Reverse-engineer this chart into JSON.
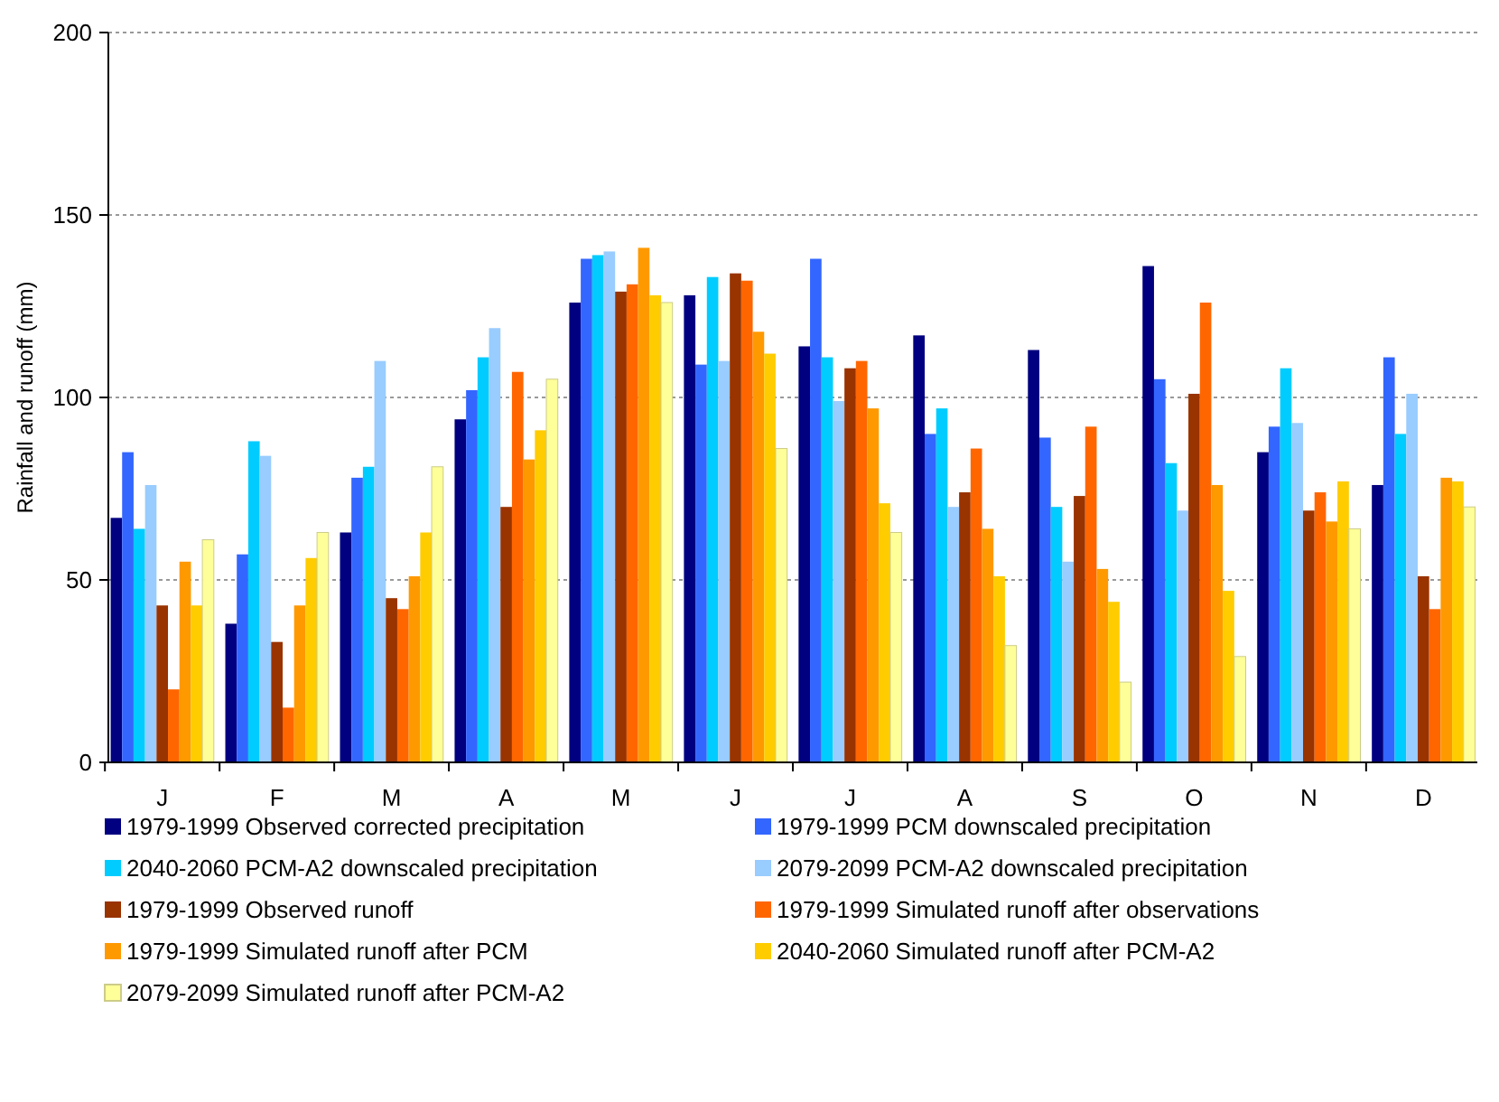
{
  "chart_data": {
    "type": "bar",
    "ylabel": "Rainfall and runoff (mm)",
    "categories": [
      "J",
      "F",
      "M",
      "A",
      "M",
      "J",
      "J",
      "A",
      "S",
      "O",
      "N",
      "D"
    ],
    "ylim": [
      0,
      200
    ],
    "yticks": [
      0,
      50,
      100,
      150,
      200
    ],
    "grid": "y",
    "legend": "bottom",
    "series": [
      {
        "name": "1979-1999 Observed corrected precipitation",
        "color": "#000080",
        "values": [
          67,
          38,
          63,
          94,
          126,
          128,
          114,
          117,
          113,
          136,
          85,
          76
        ]
      },
      {
        "name": "1979-1999 PCM downscaled precipitation",
        "color": "#3366ff",
        "values": [
          85,
          57,
          78,
          102,
          138,
          109,
          138,
          90,
          89,
          105,
          92,
          111
        ]
      },
      {
        "name": "2040-2060 PCM-A2 downscaled precipitation",
        "color": "#00ccff",
        "values": [
          64,
          88,
          81,
          111,
          139,
          133,
          111,
          97,
          70,
          82,
          108,
          90
        ]
      },
      {
        "name": "2079-2099 PCM-A2 downscaled precipitation",
        "color": "#99ccff",
        "values": [
          76,
          84,
          110,
          119,
          140,
          110,
          99,
          70,
          55,
          69,
          93,
          101
        ]
      },
      {
        "name": "1979-1999 Observed runoff",
        "color": "#993300",
        "values": [
          43,
          33,
          45,
          70,
          129,
          134,
          108,
          74,
          73,
          101,
          69,
          51
        ]
      },
      {
        "name": "1979-1999 Simulated runoff after observations",
        "color": "#ff6600",
        "values": [
          20,
          15,
          42,
          107,
          131,
          132,
          110,
          86,
          92,
          126,
          74,
          42
        ]
      },
      {
        "name": "1979-1999 Simulated runoff after PCM",
        "color": "#ff9900",
        "values": [
          55,
          43,
          51,
          83,
          141,
          118,
          97,
          64,
          53,
          76,
          66,
          78
        ]
      },
      {
        "name": "2040-2060 Simulated runoff after PCM-A2",
        "color": "#ffcc00",
        "values": [
          43,
          56,
          63,
          91,
          128,
          112,
          71,
          51,
          44,
          47,
          77,
          77
        ]
      },
      {
        "name": "2079-2099 Simulated runoff after PCM-A2",
        "color": "#ffff99",
        "values": [
          61,
          63,
          81,
          105,
          126,
          86,
          63,
          32,
          22,
          29,
          64,
          70
        ]
      }
    ]
  }
}
